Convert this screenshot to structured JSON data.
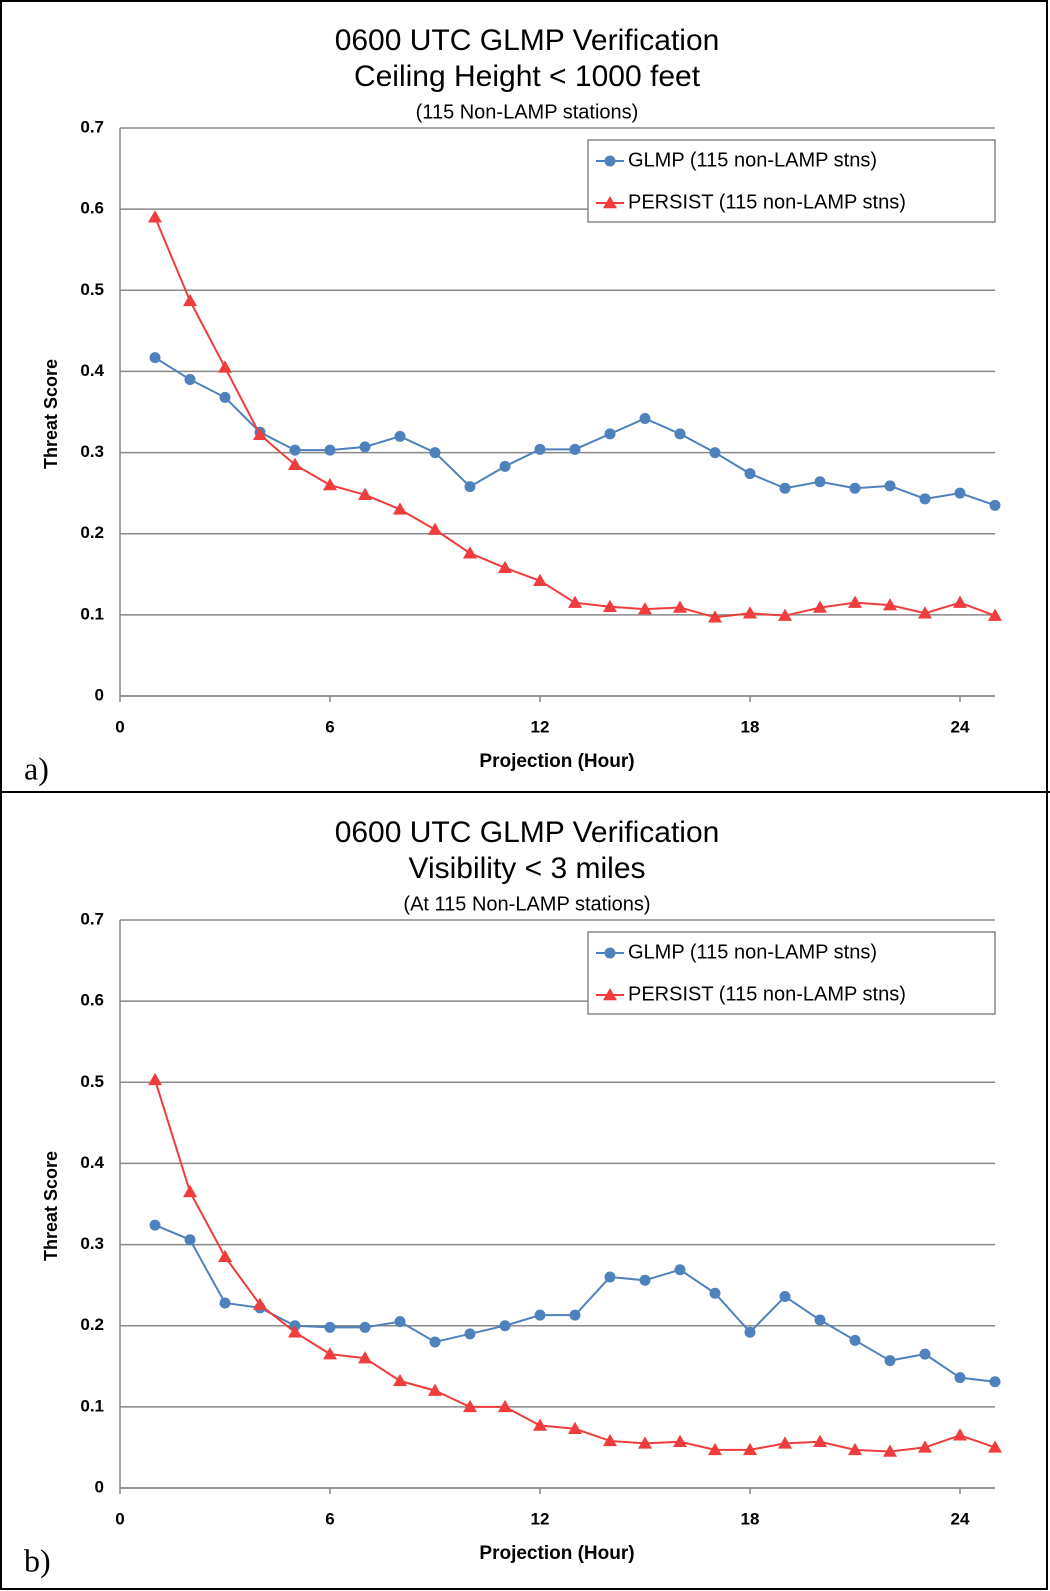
{
  "chart_data": [
    {
      "type": "line",
      "panel_label": "a)",
      "title": "0600 UTC GLMP Verification",
      "subtitle": "Ceiling Height < 1000 feet",
      "note": "(115 Non-LAMP stations)",
      "x_label": "Projection (Hour)",
      "y_label": "Threat Score",
      "x": [
        1,
        2,
        3,
        4,
        5,
        6,
        7,
        8,
        9,
        10,
        11,
        12,
        13,
        14,
        15,
        16,
        17,
        18,
        19,
        20,
        21,
        22,
        23,
        24,
        25
      ],
      "series": [
        {
          "name": "GLMP (115 non-LAMP stns)",
          "color": "#4f81bd",
          "marker": "circle",
          "values": [
            0.417,
            0.39,
            0.368,
            0.325,
            0.303,
            0.303,
            0.307,
            0.32,
            0.3,
            0.258,
            0.283,
            0.304,
            0.304,
            0.323,
            0.342,
            0.323,
            0.3,
            0.274,
            0.256,
            0.264,
            0.256,
            0.259,
            0.243,
            0.25,
            0.235
          ]
        },
        {
          "name": "PERSIST (115 non-LAMP stns)",
          "color": "#f03c3c",
          "marker": "triangle",
          "values": [
            0.59,
            0.487,
            0.405,
            0.322,
            0.285,
            0.26,
            0.248,
            0.23,
            0.205,
            0.176,
            0.158,
            0.142,
            0.115,
            0.11,
            0.107,
            0.109,
            0.097,
            0.102,
            0.099,
            0.109,
            0.115,
            0.112,
            0.102,
            0.115,
            0.099
          ]
        }
      ],
      "xlim": [
        0,
        25
      ],
      "xticks": [
        0,
        6,
        12,
        18,
        24
      ],
      "ylim": [
        0,
        0.7
      ],
      "yticks": [
        0,
        0.1,
        0.2,
        0.3,
        0.4,
        0.5,
        0.6,
        0.7
      ],
      "grid": true,
      "legend": "upper right"
    },
    {
      "type": "line",
      "panel_label": "b)",
      "title": "0600 UTC GLMP Verification",
      "subtitle": "Visibility < 3 miles",
      "note": "(At 115 Non-LAMP stations)",
      "x_label": "Projection (Hour)",
      "y_label": "Threat Score",
      "x": [
        1,
        2,
        3,
        4,
        5,
        6,
        7,
        8,
        9,
        10,
        11,
        12,
        13,
        14,
        15,
        16,
        17,
        18,
        19,
        20,
        21,
        22,
        23,
        24,
        25
      ],
      "series": [
        {
          "name": "GLMP (115 non-LAMP stns)",
          "color": "#4f81bd",
          "marker": "circle",
          "values": [
            0.324,
            0.306,
            0.228,
            0.222,
            0.2,
            0.198,
            0.198,
            0.205,
            0.18,
            0.19,
            0.2,
            0.213,
            0.213,
            0.26,
            0.256,
            0.269,
            0.24,
            0.192,
            0.236,
            0.207,
            0.182,
            0.157,
            0.165,
            0.136,
            0.131
          ]
        },
        {
          "name": "PERSIST (115 non-LAMP stns)",
          "color": "#f03c3c",
          "marker": "triangle",
          "values": [
            0.503,
            0.365,
            0.285,
            0.226,
            0.192,
            0.165,
            0.16,
            0.132,
            0.12,
            0.1,
            0.1,
            0.077,
            0.073,
            0.058,
            0.055,
            0.057,
            0.047,
            0.047,
            0.055,
            0.057,
            0.047,
            0.045,
            0.05,
            0.065,
            0.05
          ]
        }
      ],
      "xlim": [
        0,
        25
      ],
      "xticks": [
        0,
        6,
        12,
        18,
        24
      ],
      "ylim": [
        0,
        0.7
      ],
      "yticks": [
        0,
        0.1,
        0.2,
        0.3,
        0.4,
        0.5,
        0.6,
        0.7
      ],
      "grid": true,
      "legend": "upper right"
    }
  ]
}
